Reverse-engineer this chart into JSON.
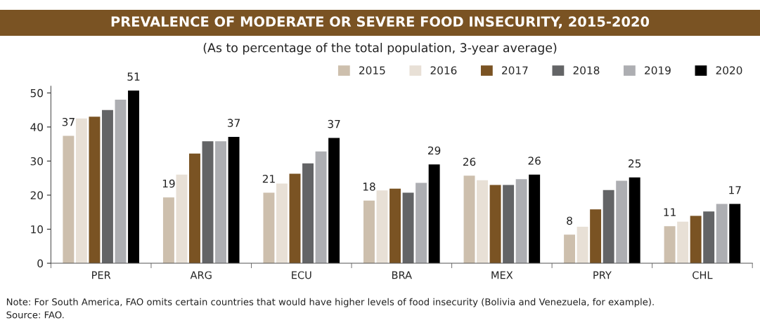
{
  "chart_data": {
    "type": "bar",
    "title": "PREVALENCE OF MODERATE OR SEVERE FOOD INSECURITY, 2015-2020",
    "subtitle": "(As to percentage of the total population, 3-year average)",
    "categories": [
      "PER",
      "ARG",
      "ECU",
      "BRA",
      "MEX",
      "PRY",
      "CHL"
    ],
    "series": [
      {
        "name": "2015",
        "color": "#cdbfad",
        "values": [
          37.4,
          19.3,
          20.7,
          18.4,
          25.7,
          8.4,
          10.9
        ],
        "value_labels": [
          "37",
          "19",
          "21",
          "18",
          "26",
          "8",
          "11"
        ]
      },
      {
        "name": "2016",
        "color": "#e8e0d6",
        "values": [
          42.5,
          26.0,
          23.4,
          21.4,
          24.4,
          10.7,
          12.2
        ]
      },
      {
        "name": "2017",
        "color": "#7a5323",
        "values": [
          43.0,
          32.2,
          26.3,
          21.9,
          23.0,
          15.8,
          13.9
        ]
      },
      {
        "name": "2018",
        "color": "#636466",
        "values": [
          45.0,
          35.8,
          29.3,
          20.7,
          23.0,
          21.5,
          15.2
        ]
      },
      {
        "name": "2019",
        "color": "#adaeb2",
        "values": [
          48.0,
          35.8,
          32.8,
          23.6,
          24.7,
          24.2,
          17.4
        ]
      },
      {
        "name": "2020",
        "color": "#000000",
        "values": [
          50.7,
          37.1,
          36.8,
          29.0,
          26.0,
          25.2,
          17.4
        ],
        "value_labels": [
          "51",
          "37",
          "37",
          "29",
          "26",
          "25",
          "17"
        ]
      }
    ],
    "ylim": [
      0,
      52
    ],
    "yticks": [
      0,
      10,
      20,
      30,
      40,
      50
    ],
    "grid": false,
    "legend": "top right",
    "annotations": [
      "Note: For South America, FAO omits certain countries that would have higher levels of food insecurity (Bolivia and Venezuela, for example).",
      "Source: FAO."
    ]
  }
}
